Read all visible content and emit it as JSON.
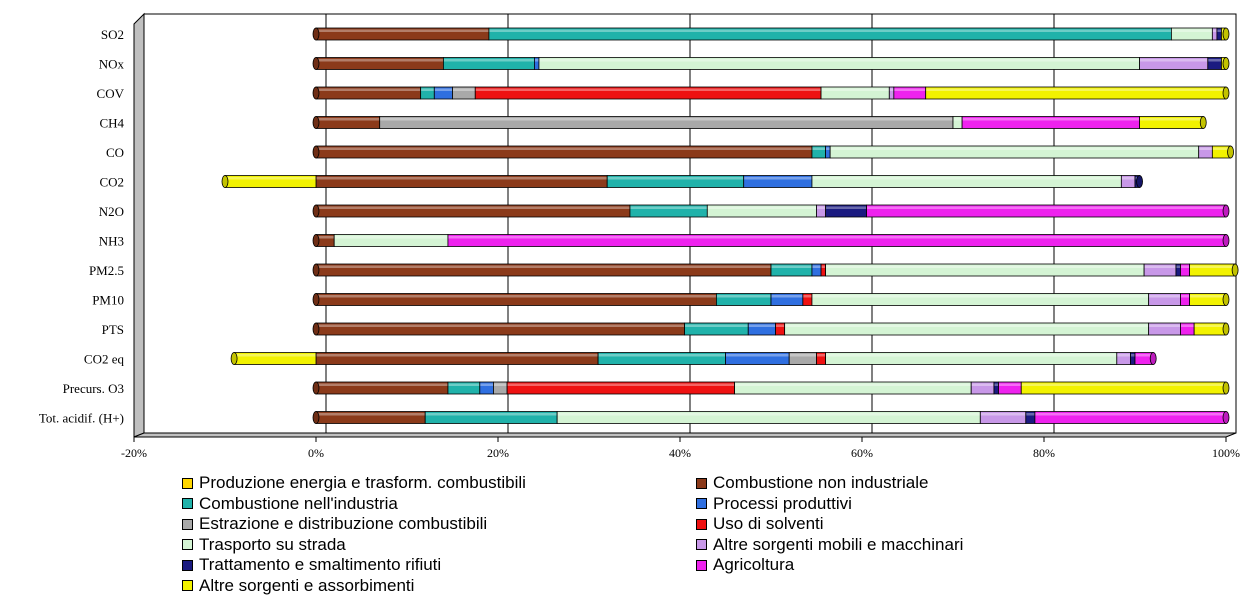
{
  "chart_data": {
    "type": "bar",
    "orientation": "horizontal",
    "stacked": "percent",
    "title": "",
    "xlabel": "",
    "ylabel": "",
    "xlim": [
      -20,
      100
    ],
    "x_ticks": [
      "-20%",
      "0%",
      "20%",
      "40%",
      "60%",
      "80%",
      "100%"
    ],
    "grid": true,
    "legend_position": "bottom",
    "categories": [
      "SO2",
      "NOx",
      "COV",
      "CH4",
      "CO",
      "CO2",
      "N2O",
      "NH3",
      "PM2.5",
      "PM10",
      "PTS",
      "CO2 eq",
      "Precurs. O3",
      "Tot. acidif. (H+)"
    ],
    "series": [
      {
        "name": "Produzione energia e trasform. combustibili",
        "color": "#FFD700",
        "values": [
          0,
          0,
          0,
          0,
          0,
          0,
          0,
          0,
          0,
          0,
          0,
          0,
          0,
          0
        ]
      },
      {
        "name": "Combustione non industriale",
        "color": "#8B3A1A",
        "values": [
          19,
          14,
          11.5,
          7,
          54.5,
          32,
          34.5,
          2,
          50,
          44,
          40.5,
          31,
          14.5,
          12
        ]
      },
      {
        "name": "Combustione nell'industria",
        "color": "#20B2AA",
        "values": [
          75,
          10,
          1.5,
          0,
          1.5,
          15,
          8.5,
          0,
          4.5,
          6,
          7,
          14,
          3.5,
          14.5
        ]
      },
      {
        "name": "Processi produttivi",
        "color": "#2F6FE0",
        "values": [
          0,
          0.5,
          2,
          0,
          0.5,
          7.5,
          0,
          0,
          1,
          3.5,
          3,
          7,
          1.5,
          0
        ]
      },
      {
        "name": "Estrazione e distribuzione combustibili",
        "color": "#A9A9A9",
        "values": [
          0,
          0,
          2.5,
          63,
          0,
          0,
          0,
          0,
          0,
          0,
          0,
          3,
          1.5,
          0
        ]
      },
      {
        "name": "Uso di solventi",
        "color": "#EE1111",
        "values": [
          0,
          0,
          38,
          0,
          0,
          0,
          0,
          0,
          0.5,
          1,
          1,
          1,
          25,
          0
        ]
      },
      {
        "name": "Trasporto su strada",
        "color": "#D4F4D4",
        "values": [
          4.5,
          66,
          7.5,
          1,
          40.5,
          34,
          12,
          12.5,
          35,
          37,
          40,
          32,
          26,
          46.5
        ]
      },
      {
        "name": "Altre sorgenti mobili e macchinari",
        "color": "#C898E8",
        "values": [
          0.5,
          7.5,
          0.5,
          0,
          1.5,
          1.5,
          1,
          0,
          3.5,
          3.5,
          3.5,
          1.5,
          2.5,
          5
        ]
      },
      {
        "name": "Trattamento e smaltimento rifiuti",
        "color": "#1A1A80",
        "values": [
          0.5,
          1.5,
          0,
          0,
          0,
          0.5,
          4.5,
          0,
          0.5,
          0,
          0,
          0.5,
          0.5,
          1
        ]
      },
      {
        "name": "Agricoltura",
        "color": "#EE22EE",
        "values": [
          0,
          0,
          3.5,
          19.5,
          0,
          0,
          39.5,
          85.5,
          1,
          1,
          1.5,
          2,
          2.5,
          21
        ]
      },
      {
        "name": "Altre sorgenti e assorbimenti",
        "color": "#F2F200",
        "values": [
          0.5,
          0.5,
          33,
          7,
          2,
          -10,
          0,
          0,
          5,
          4,
          3.5,
          -9,
          22.5,
          0
        ]
      }
    ]
  }
}
